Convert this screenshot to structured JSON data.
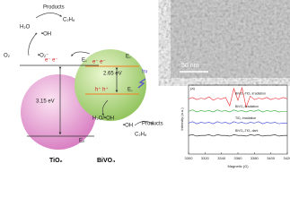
{
  "diagram": {
    "top_products": "Products",
    "top_c2h6": "C₂H₆",
    "top_h2o": "H₂O",
    "top_oh": "•OH",
    "o2": "O₂",
    "o2_radical": "•O₂⁻",
    "tio2_electrons": "e⁻ e⁻",
    "tio2_ec": "E꜀",
    "tio2_gap": "3.15 eV",
    "tio2_ev": "Eᵥ",
    "tio2_name": "TiO₂",
    "bivo4_electrons": "e⁻ e⁻",
    "bivo4_ec": "E꜀",
    "bivo4_gap": "2.65 eV",
    "light": "hν",
    "holes": "h⁺ h⁺",
    "bivo4_ef": "E꜀",
    "bottom_h2o": "H₂O/•OH",
    "bottom_oh": "•OH",
    "bottom_c2h6": "C₂H₆",
    "bottom_products": "Products",
    "bivo4_name": "BiVO₄"
  },
  "micrograph": {
    "scale_bar": "50 nm"
  },
  "chart_data": {
    "type": "line",
    "panel_label": "(a)",
    "x_label": "Magnetic (G)",
    "y_label": "Intensity (a.u.)",
    "x": [
      3300,
      3305,
      3310,
      3315,
      3320,
      3325,
      3330,
      3335,
      3340,
      3345,
      3350,
      3355,
      3360,
      3365,
      3370,
      3375,
      3380,
      3385,
      3390,
      3395,
      3400,
      3405,
      3410,
      3415,
      3420
    ],
    "xlim": [
      3300,
      3420
    ],
    "xticks": [
      3300,
      3320,
      3340,
      3360,
      3380,
      3400,
      3420
    ],
    "ylim": [
      0,
      100
    ],
    "series": [
      {
        "name": "BiVO₄-TiO₂ irradiation",
        "color": "#e8262b",
        "values": [
          80,
          82,
          79,
          81,
          80,
          83,
          78,
          81,
          80,
          82,
          70,
          95,
          78,
          96,
          68,
          84,
          79,
          81,
          80,
          82,
          79,
          81,
          80,
          82,
          80
        ]
      },
      {
        "name": "BiVO₄ irradiation",
        "color": "#2aa830",
        "values": [
          62,
          64,
          61,
          63,
          62,
          63,
          61,
          64,
          62,
          63,
          61,
          64,
          62,
          63,
          61,
          63,
          62,
          64,
          61,
          63,
          62,
          63,
          61,
          62,
          62
        ]
      },
      {
        "name": "TiO₂ irradiation",
        "color": "#3340d0",
        "values": [
          45,
          47,
          44,
          46,
          45,
          46,
          44,
          47,
          45,
          46,
          44,
          47,
          45,
          46,
          44,
          46,
          45,
          47,
          44,
          46,
          45,
          46,
          44,
          45,
          45
        ]
      },
      {
        "name": "BiVO₄-TiO₂ dark",
        "color": "#111111",
        "values": [
          27,
          28,
          26,
          27,
          27,
          28,
          26,
          28,
          27,
          27,
          26,
          28,
          27,
          27,
          26,
          28,
          27,
          28,
          26,
          27,
          27,
          28,
          26,
          27,
          27
        ]
      }
    ]
  }
}
